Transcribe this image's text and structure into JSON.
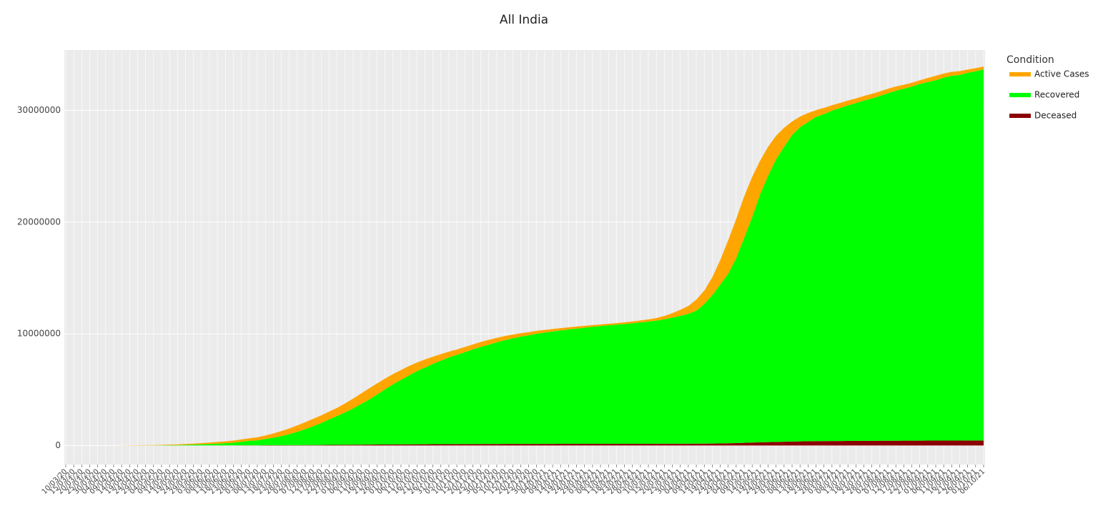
{
  "chart_data": {
    "type": "stacked_area",
    "title": "All India",
    "legend_title": "Condition",
    "categories": [
      "10/03/20",
      "15/03/20",
      "20/03/20",
      "25/03/20",
      "30/03/20",
      "04/04/20",
      "09/04/20",
      "14/04/20",
      "19/04/20",
      "24/04/20",
      "29/04/20",
      "04/05/20",
      "09/05/20",
      "14/05/20",
      "19/05/20",
      "24/05/20",
      "29/05/20",
      "03/06/20",
      "08/06/20",
      "13/06/20",
      "18/06/20",
      "23/06/20",
      "28/06/20",
      "03/07/20",
      "08/07/20",
      "13/07/20",
      "18/07/20",
      "23/07/20",
      "28/07/20",
      "02/08/20",
      "07/08/20",
      "12/08/20",
      "17/08/20",
      "22/08/20",
      "27/08/20",
      "01/09/20",
      "06/09/20",
      "11/09/20",
      "16/09/20",
      "21/09/20",
      "26/09/20",
      "01/10/20",
      "06/10/20",
      "11/10/20",
      "16/10/20",
      "21/10/20",
      "26/10/20",
      "31/10/20",
      "05/11/20",
      "10/11/20",
      "15/11/20",
      "20/11/20",
      "25/11/20",
      "30/11/20",
      "05/12/20",
      "10/12/20",
      "15/12/20",
      "20/12/20",
      "25/12/20",
      "30/12/20",
      "04/01/21",
      "09/01/21",
      "14/01/21",
      "19/01/21",
      "24/01/21",
      "29/01/21",
      "03/02/21",
      "08/02/21",
      "13/02/21",
      "18/02/21",
      "23/02/21",
      "28/02/21",
      "05/03/21",
      "10/03/21",
      "15/03/21",
      "20/03/21",
      "25/03/21",
      "30/03/21",
      "04/04/21",
      "09/04/21",
      "14/04/21",
      "19/04/21",
      "24/04/21",
      "29/04/21",
      "04/05/21",
      "09/05/21",
      "14/05/21",
      "19/05/21",
      "24/05/21",
      "29/05/21",
      "03/06/21",
      "08/06/21",
      "13/06/21",
      "18/06/21",
      "23/06/21",
      "28/06/21",
      "03/07/21",
      "08/07/21",
      "13/07/21",
      "18/07/21",
      "23/07/21",
      "28/07/21",
      "02/08/21",
      "07/08/21",
      "12/08/21",
      "17/08/21",
      "22/08/21",
      "27/08/21",
      "01/09/21",
      "06/09/21",
      "11/09/21",
      "16/09/21",
      "21/09/21",
      "26/09/21",
      "01/10/21",
      "06/10/21"
    ],
    "series": [
      {
        "name": "Active Cases",
        "color": "#FFA500",
        "values": [
          50,
          100,
          200,
          500,
          1100,
          2600,
          5000,
          9000,
          14000,
          18000,
          23000,
          32000,
          41000,
          51000,
          61000,
          77000,
          87000,
          106000,
          130000,
          154000,
          168000,
          186000,
          211000,
          230000,
          270000,
          310000,
          380000,
          450000,
          510000,
          570000,
          620000,
          660000,
          680000,
          700000,
          730000,
          800000,
          880000,
          940000,
          1000000,
          990000,
          960000,
          920000,
          880000,
          840000,
          770000,
          720000,
          640000,
          580000,
          520000,
          480000,
          460000,
          440000,
          440000,
          430000,
          400000,
          370000,
          340000,
          300000,
          280000,
          260000,
          240000,
          220000,
          210000,
          190000,
          180000,
          170000,
          150000,
          145000,
          135000,
          140000,
          150000,
          165000,
          180000,
          200000,
          230000,
          300000,
          400000,
          550000,
          700000,
          990000,
          1200000,
          1600000,
          2200000,
          3000000,
          3500000,
          3700000,
          3600000,
          3000000,
          2600000,
          2100000,
          1700000,
          1200000,
          950000,
          800000,
          600000,
          560000,
          480000,
          450000,
          430000,
          410000,
          410000,
          420000,
          400000,
          400000,
          380000,
          350000,
          340000,
          330000,
          370000,
          400000,
          380000,
          350000,
          340000,
          300000,
          280000,
          250000
        ]
      },
      {
        "name": "Recovered",
        "color": "#00FF00",
        "values": [
          0,
          0,
          0,
          90,
          170,
          320,
          600,
          1600,
          2500,
          5200,
          9000,
          12500,
          19000,
          28400,
          41700,
          56800,
          81000,
          105000,
          128500,
          156500,
          199500,
          240000,
          322500,
          401500,
          449500,
          566000,
          673000,
          809000,
          986000,
          1192000,
          1428000,
          1683000,
          1969000,
          2284000,
          2589000,
          2903000,
          3248000,
          3642000,
          4027000,
          4481000,
          4936000,
          5380000,
          5776000,
          6171000,
          6547000,
          6863000,
          7189000,
          7476000,
          7763000,
          7991000,
          8228000,
          8475000,
          8692000,
          8890000,
          9098000,
          9286000,
          9445000,
          9603000,
          9722000,
          9861000,
          9960000,
          10059000,
          10148000,
          10237000,
          10317000,
          10396000,
          10475000,
          10540000,
          10609000,
          10664000,
          10723000,
          10788000,
          10862000,
          10932000,
          11021000,
          11140000,
          11289000,
          11438000,
          11625000,
          11903000,
          12498000,
          13282000,
          14210000,
          15175000,
          16558000,
          18358000,
          20184000,
          22213000,
          23843000,
          25305000,
          26403000,
          27448000,
          28120000,
          28575000,
          29029000,
          29273000,
          29579000,
          29805000,
          30038000,
          30245000,
          30462000,
          30638000,
          30875000,
          31102000,
          31330000,
          31508000,
          31695000,
          31923000,
          32090000,
          32258000,
          32477000,
          32656000,
          32724000,
          32913000,
          33052000,
          33220000
        ]
      },
      {
        "name": "Deceased",
        "color": "#8B0000",
        "values": [
          0,
          0,
          0,
          10,
          30,
          80,
          200,
          400,
          500,
          800,
          1000,
          1500,
          2000,
          2600,
          3300,
          4200,
          5000,
          6000,
          7500,
          9500,
          12500,
          14000,
          16500,
          18500,
          20500,
          24000,
          27000,
          31000,
          34000,
          38000,
          42000,
          47000,
          51000,
          56000,
          61000,
          67000,
          72000,
          78000,
          83000,
          89000,
          94000,
          100000,
          104000,
          109000,
          113000,
          117000,
          121000,
          124000,
          127000,
          129000,
          132000,
          135000,
          138000,
          140000,
          142000,
          144000,
          145000,
          147000,
          148000,
          149000,
          150000,
          151000,
          152000,
          153000,
          153000,
          154000,
          155000,
          155000,
          156000,
          156000,
          157000,
          157000,
          158000,
          158000,
          159000,
          160000,
          161000,
          162000,
          165000,
          167000,
          172000,
          178000,
          190000,
          205000,
          222000,
          242000,
          266000,
          287000,
          307000,
          325000,
          337000,
          352000,
          370000,
          385000,
          391000,
          397000,
          401000,
          405000,
          412000,
          415000,
          418000,
          422000,
          425000,
          428000,
          430000,
          432000,
          435000,
          437000,
          440000,
          442000,
          443000,
          444000,
          446000,
          447000,
          448000,
          450000
        ]
      }
    ],
    "ylim": [
      -1700000,
      35400000
    ],
    "yticks": [
      0,
      10000000,
      20000000,
      30000000
    ],
    "grid": true
  }
}
